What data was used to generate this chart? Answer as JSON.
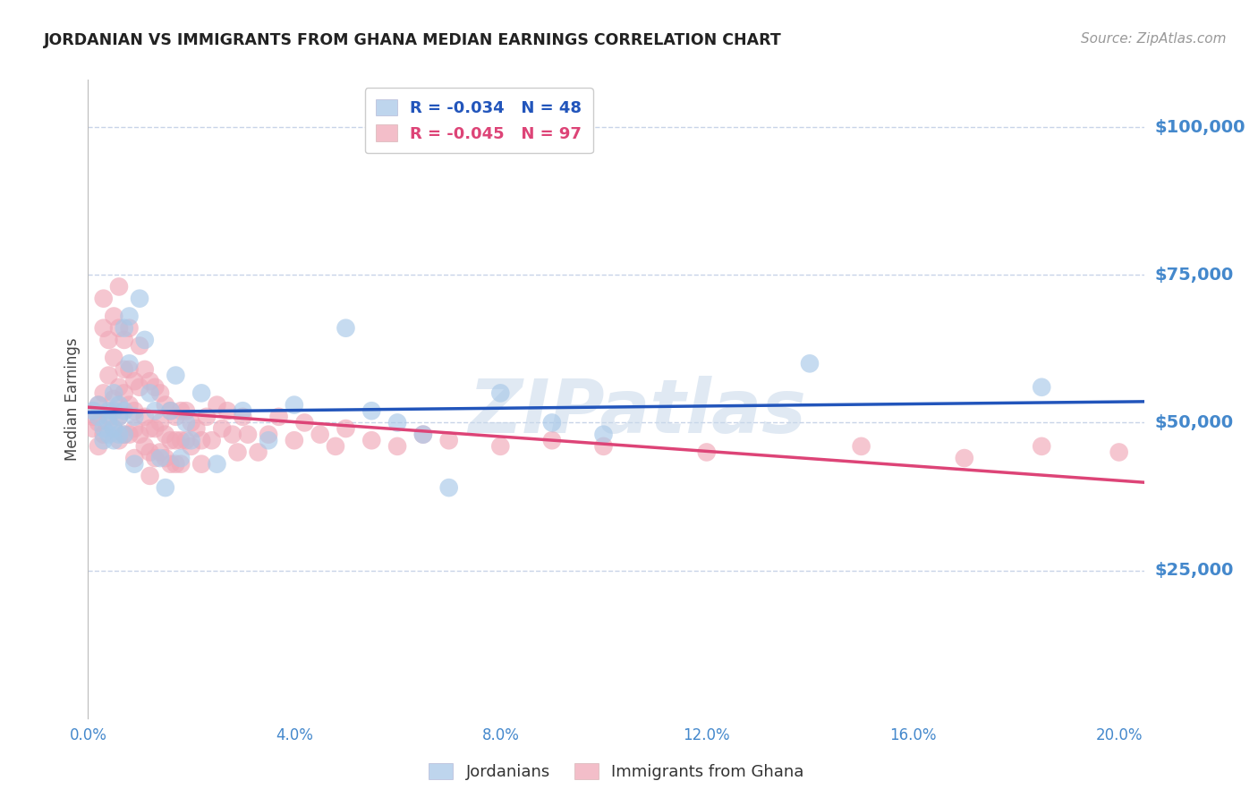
{
  "title": "JORDANIAN VS IMMIGRANTS FROM GHANA MEDIAN EARNINGS CORRELATION CHART",
  "source": "Source: ZipAtlas.com",
  "ylabel": "Median Earnings",
  "xlim": [
    0.0,
    0.205
  ],
  "ylim": [
    0,
    108000
  ],
  "background_color": "#ffffff",
  "grid_color": "#c8d4e8",
  "blue_scatter_color": "#a8c8e8",
  "pink_scatter_color": "#f0a8b8",
  "blue_line_color": "#2255bb",
  "pink_line_color": "#dd4477",
  "axis_label_color": "#4488cc",
  "title_color": "#222222",
  "watermark": "ZIPatlas",
  "legend_R_blue": "-0.034",
  "legend_N_blue": "48",
  "legend_R_pink": "-0.045",
  "legend_N_pink": "97",
  "legend_label_blue": "Jordanians",
  "legend_label_pink": "Immigrants from Ghana",
  "jordanian_x": [
    0.001,
    0.002,
    0.002,
    0.003,
    0.003,
    0.004,
    0.004,
    0.004,
    0.005,
    0.005,
    0.005,
    0.005,
    0.006,
    0.006,
    0.006,
    0.007,
    0.007,
    0.007,
    0.008,
    0.008,
    0.009,
    0.009,
    0.01,
    0.011,
    0.012,
    0.013,
    0.014,
    0.015,
    0.016,
    0.017,
    0.018,
    0.019,
    0.02,
    0.022,
    0.025,
    0.03,
    0.035,
    0.04,
    0.05,
    0.055,
    0.06,
    0.065,
    0.07,
    0.08,
    0.09,
    0.1,
    0.14,
    0.185
  ],
  "jordanian_y": [
    52000,
    51000,
    53000,
    49000,
    47000,
    52000,
    50000,
    48000,
    55000,
    52000,
    49000,
    47000,
    53000,
    51000,
    48000,
    66000,
    52000,
    48000,
    68000,
    60000,
    51000,
    43000,
    71000,
    64000,
    55000,
    52000,
    44000,
    39000,
    52000,
    58000,
    44000,
    50000,
    47000,
    55000,
    43000,
    52000,
    47000,
    53000,
    66000,
    52000,
    50000,
    48000,
    39000,
    55000,
    50000,
    48000,
    60000,
    56000
  ],
  "ghana_x": [
    0.001,
    0.001,
    0.002,
    0.002,
    0.002,
    0.003,
    0.003,
    0.003,
    0.003,
    0.004,
    0.004,
    0.004,
    0.005,
    0.005,
    0.005,
    0.005,
    0.006,
    0.006,
    0.006,
    0.006,
    0.006,
    0.007,
    0.007,
    0.007,
    0.007,
    0.008,
    0.008,
    0.008,
    0.008,
    0.009,
    0.009,
    0.009,
    0.009,
    0.01,
    0.01,
    0.01,
    0.011,
    0.011,
    0.011,
    0.012,
    0.012,
    0.012,
    0.012,
    0.013,
    0.013,
    0.013,
    0.014,
    0.014,
    0.014,
    0.015,
    0.015,
    0.015,
    0.016,
    0.016,
    0.016,
    0.017,
    0.017,
    0.017,
    0.018,
    0.018,
    0.018,
    0.019,
    0.019,
    0.02,
    0.02,
    0.021,
    0.022,
    0.022,
    0.023,
    0.024,
    0.025,
    0.026,
    0.027,
    0.028,
    0.029,
    0.03,
    0.031,
    0.033,
    0.035,
    0.037,
    0.04,
    0.042,
    0.045,
    0.048,
    0.05,
    0.055,
    0.06,
    0.065,
    0.07,
    0.08,
    0.09,
    0.1,
    0.12,
    0.15,
    0.17,
    0.185,
    0.2
  ],
  "ghana_y": [
    51000,
    49000,
    53000,
    50000,
    46000,
    66000,
    71000,
    55000,
    48000,
    64000,
    58000,
    51000,
    68000,
    61000,
    54000,
    49000,
    73000,
    66000,
    56000,
    51000,
    47000,
    64000,
    59000,
    55000,
    48000,
    66000,
    59000,
    53000,
    48000,
    57000,
    52000,
    49000,
    44000,
    63000,
    56000,
    48000,
    59000,
    51000,
    46000,
    57000,
    49000,
    45000,
    41000,
    56000,
    49000,
    44000,
    55000,
    50000,
    45000,
    53000,
    48000,
    44000,
    52000,
    47000,
    43000,
    51000,
    47000,
    43000,
    52000,
    47000,
    43000,
    52000,
    47000,
    50000,
    46000,
    49000,
    47000,
    43000,
    51000,
    47000,
    53000,
    49000,
    52000,
    48000,
    45000,
    51000,
    48000,
    45000,
    48000,
    51000,
    47000,
    50000,
    48000,
    46000,
    49000,
    47000,
    46000,
    48000,
    47000,
    46000,
    47000,
    46000,
    45000,
    46000,
    44000,
    46000,
    45000
  ]
}
